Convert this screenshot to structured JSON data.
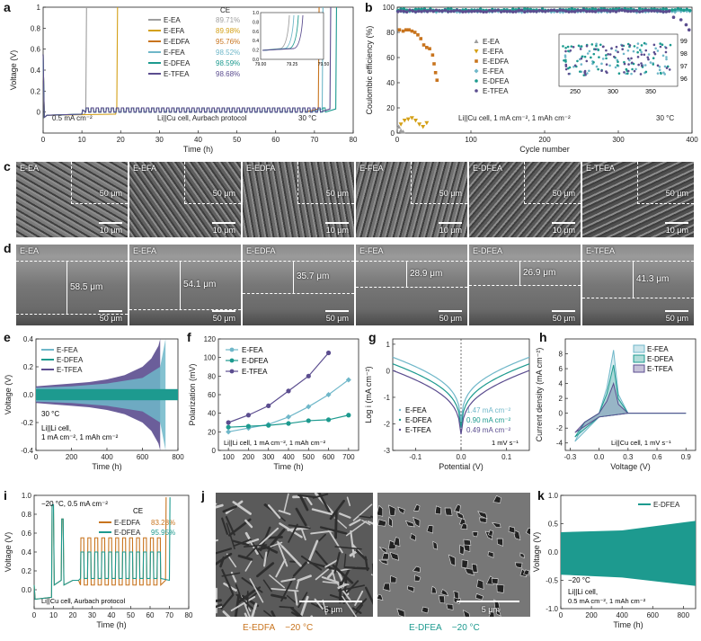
{
  "panels": {
    "a": {
      "letter": "a"
    },
    "b": {
      "letter": "b"
    },
    "c": {
      "letter": "c"
    },
    "d": {
      "letter": "d"
    },
    "e": {
      "letter": "e"
    },
    "f": {
      "letter": "f"
    },
    "g": {
      "letter": "g"
    },
    "h": {
      "letter": "h"
    },
    "i": {
      "letter": "i"
    },
    "j": {
      "letter": "j"
    },
    "k": {
      "letter": "k"
    }
  },
  "colors": {
    "E-EA": "#9e9e9e",
    "E-EFA": "#d4a017",
    "E-EDFA": "#c8741e",
    "E-FEA": "#6fb7c9",
    "E-DFEA": "#1d9a8f",
    "E-TFEA": "#5b4d8f"
  },
  "chart_data": [
    {
      "id": "a",
      "type": "line",
      "xlabel": "Time (h)",
      "ylabel": "Voltage (V)",
      "xlim": [
        0,
        80
      ],
      "ylim": [
        -0.2,
        1.0
      ],
      "xticks": [
        0,
        10,
        20,
        30,
        40,
        50,
        60,
        70,
        80
      ],
      "yticks": [
        0.0,
        0.2,
        0.4,
        0.6,
        0.8,
        1.0
      ],
      "legend_title": "CE",
      "series": [
        {
          "name": "E-EA",
          "ce": "89.71%",
          "end_time": 11
        },
        {
          "name": "E-EFA",
          "ce": "89.98%",
          "end_time": 19
        },
        {
          "name": "E-EDFA",
          "ce": "95.76%",
          "end_time": 71
        },
        {
          "name": "E-FEA",
          "ce": "98.52%",
          "end_time": 72
        },
        {
          "name": "E-DFEA",
          "ce": "98.59%",
          "end_time": 75.5
        },
        {
          "name": "E-TFEA",
          "ce": "98.68%",
          "end_time": 74
        }
      ],
      "annotations": [
        "0.5 mA cm⁻²",
        "Li||Cu cell, Aurbach protocol",
        "30 °C"
      ],
      "inset": {
        "xlim": [
          79.0,
          79.5
        ],
        "ylim": [
          0.0,
          1.0
        ],
        "xticks": [
          "79.00",
          "79.25",
          "79.50"
        ],
        "yticks": [
          "0.0",
          "0.2",
          "0.4",
          "0.6",
          "0.8",
          "1.0"
        ]
      }
    },
    {
      "id": "b",
      "type": "scatter",
      "xlabel": "Cycle number",
      "ylabel": "Coulombic efficiency (%)",
      "xlim": [
        0,
        400
      ],
      "ylim": [
        0,
        100
      ],
      "xticks": [
        0,
        100,
        200,
        300,
        400
      ],
      "yticks": [
        0,
        20,
        40,
        60,
        80,
        100
      ],
      "series": [
        {
          "name": "E-EA",
          "points": [
            [
              2,
              5
            ],
            [
              5,
              2
            ],
            [
              8,
              1
            ]
          ]
        },
        {
          "name": "E-EFA",
          "points": [
            [
              5,
              7
            ],
            [
              10,
              10
            ],
            [
              15,
              11
            ],
            [
              20,
              12
            ],
            [
              25,
              10
            ],
            [
              30,
              7
            ],
            [
              35,
              5
            ],
            [
              40,
              8
            ]
          ]
        },
        {
          "name": "E-EDFA",
          "points": [
            [
              3,
              82
            ],
            [
              8,
              81
            ],
            [
              12,
              82
            ],
            [
              16,
              82
            ],
            [
              20,
              81
            ],
            [
              24,
              80
            ],
            [
              28,
              78
            ],
            [
              32,
              75
            ],
            [
              36,
              70
            ],
            [
              40,
              68
            ],
            [
              44,
              67
            ],
            [
              48,
              62
            ],
            [
              50,
              55
            ],
            [
              52,
              48
            ],
            [
              54,
              42
            ]
          ]
        },
        {
          "name": "E-FEA",
          "range": [
            1,
            400
          ],
          "value": 97
        },
        {
          "name": "E-DFEA",
          "range": [
            1,
            400
          ],
          "value": 98
        },
        {
          "name": "E-TFEA",
          "range": [
            1,
            370
          ],
          "value": 97
        }
      ],
      "annotations": [
        "Li||Cu cell, 1 mA cm⁻², 1 mAh cm⁻²",
        "30 °C"
      ],
      "inset": {
        "xticks": [
          "250",
          "300",
          "350"
        ],
        "yticks": [
          "96",
          "97",
          "98",
          "99"
        ]
      }
    },
    {
      "id": "e",
      "type": "line",
      "xlabel": "Time (h)",
      "ylabel": "Voltage (V)",
      "xlim": [
        0,
        800
      ],
      "ylim": [
        -0.4,
        0.4
      ],
      "xticks": [
        0,
        200,
        400,
        600,
        800
      ],
      "yticks": [
        "-0.4",
        "-0.2",
        "0.0",
        "0.2",
        "0.4"
      ],
      "series": [
        {
          "name": "E-FEA"
        },
        {
          "name": "E-DFEA"
        },
        {
          "name": "E-TFEA"
        }
      ],
      "annotations": [
        "30 °C",
        "Li||Li cell,",
        "1 mA cm⁻², 1 mAh cm⁻²"
      ]
    },
    {
      "id": "f",
      "type": "line",
      "xlabel": "Time (h)",
      "ylabel": "Polarization (mV)",
      "xlim": [
        50,
        750
      ],
      "ylim": [
        0,
        120
      ],
      "xticks": [
        100,
        200,
        300,
        400,
        500,
        600,
        700
      ],
      "yticks": [
        0,
        20,
        40,
        60,
        80,
        100,
        120
      ],
      "series": [
        {
          "name": "E-FEA",
          "x": [
            100,
            200,
            300,
            400,
            500,
            600,
            700
          ],
          "y": [
            20,
            24,
            28,
            36,
            47,
            60,
            76
          ]
        },
        {
          "name": "E-DFEA",
          "x": [
            100,
            200,
            300,
            400,
            500,
            600,
            700
          ],
          "y": [
            25,
            26,
            27,
            29,
            32,
            33,
            38
          ]
        },
        {
          "name": "E-TFEA",
          "x": [
            100,
            200,
            300,
            400,
            500,
            600
          ],
          "y": [
            30,
            38,
            48,
            64,
            80,
            105
          ]
        }
      ],
      "annotations": [
        "Li||Li cell, 1 mA cm⁻², 1 mAh cm⁻²"
      ]
    },
    {
      "id": "g",
      "type": "line",
      "xlabel": "Potential (V)",
      "ylabel": "Log i (mA cm⁻²)",
      "xlim": [
        -0.15,
        0.15
      ],
      "ylim": [
        -3,
        1.2
      ],
      "xticks": [
        "-0.1",
        "0.0",
        "0.1"
      ],
      "yticks": [
        "-3",
        "-2",
        "-1",
        "0",
        "1"
      ],
      "series": [
        {
          "name": "E-FEA",
          "i0": "1.47 mA cm⁻²"
        },
        {
          "name": "E-DFEA",
          "i0": "0.90 mA cm⁻²"
        },
        {
          "name": "E-TFEA",
          "i0": "0.49 mA cm⁻²"
        }
      ],
      "annotations": [
        "1 mV s⁻¹"
      ]
    },
    {
      "id": "h",
      "type": "line",
      "xlabel": "Voltage (V)",
      "ylabel": "Current density (mA cm⁻²)",
      "xlim": [
        -0.35,
        1.0
      ],
      "ylim": [
        -5,
        10
      ],
      "xticks": [
        "-0.3",
        "0.0",
        "0.3",
        "0.6",
        "0.9"
      ],
      "yticks": [
        "-4",
        "-2",
        "0",
        "2",
        "4",
        "6",
        "8"
      ],
      "series": [
        {
          "name": "E-FEA"
        },
        {
          "name": "E-DFEA"
        },
        {
          "name": "E-TFEA"
        }
      ],
      "annotations": [
        "Li||Cu cell, 1 mV s⁻¹"
      ]
    },
    {
      "id": "i",
      "type": "line",
      "xlabel": "Time (h)",
      "ylabel": "Voltage (V)",
      "xlim": [
        0,
        80
      ],
      "ylim": [
        -0.2,
        1.0
      ],
      "xticks": [
        0,
        10,
        20,
        30,
        40,
        50,
        60,
        70,
        80
      ],
      "yticks": [
        "0.0",
        "0.2",
        "0.4",
        "0.6",
        "0.8",
        "1.0"
      ],
      "legend_title": "CE",
      "series": [
        {
          "name": "E-EDFA",
          "ce": "83.28%"
        },
        {
          "name": "E-DFEA",
          "ce": "95.95%"
        }
      ],
      "annotations": [
        "−20 °C, 0.5 mA cm⁻²",
        "Li||Cu cell, Aurbach protocol"
      ]
    },
    {
      "id": "k",
      "type": "line",
      "xlabel": "Time (h)",
      "ylabel": "Voltage (V)",
      "xlim": [
        0,
        880
      ],
      "ylim": [
        -1.0,
        1.0
      ],
      "xticks": [
        0,
        200,
        400,
        600,
        800
      ],
      "yticks": [
        "-1.0",
        "-0.5",
        "0.0",
        "0.5",
        "1.0"
      ],
      "series": [
        {
          "name": "E-DFEA"
        }
      ],
      "annotations": [
        "−20 °C",
        "Li||Li cell,",
        "0.5 mA cm⁻², 1 mAh cm⁻²"
      ]
    }
  ],
  "sem_c": {
    "items": [
      {
        "label": "E-EA",
        "scale_inset": "50 μm",
        "scale": "10 μm"
      },
      {
        "label": "E-EFA",
        "scale_inset": "50 μm",
        "scale": "10 μm"
      },
      {
        "label": "E-EDFA",
        "scale_inset": "50 μm",
        "scale": "10 μm"
      },
      {
        "label": "E-FEA",
        "scale_inset": "50 μm",
        "scale": "10 μm"
      },
      {
        "label": "E-DFEA",
        "scale_inset": "50 μm",
        "scale": "10 μm"
      },
      {
        "label": "E-TFEA",
        "scale_inset": "50 μm",
        "scale": "10 μm"
      }
    ]
  },
  "sem_d": {
    "items": [
      {
        "label": "E-EA",
        "thickness": "58.5 μm",
        "scale": "50 μm"
      },
      {
        "label": "E-EFA",
        "thickness": "54.1 μm",
        "scale": "50 μm"
      },
      {
        "label": "E-EDFA",
        "thickness": "35.7 μm",
        "scale": "50 μm"
      },
      {
        "label": "E-FEA",
        "thickness": "28.9 μm",
        "scale": "50 μm"
      },
      {
        "label": "E-DFEA",
        "thickness": "26.9 μm",
        "scale": "50 μm"
      },
      {
        "label": "E-TFEA",
        "thickness": "41.3 μm",
        "scale": "50 μm"
      }
    ]
  },
  "sem_j": {
    "left": {
      "scale": "5 μm",
      "caption": "E-EDFA",
      "temp": "−20 °C"
    },
    "right": {
      "scale": "5 μm",
      "caption": "E-DFEA",
      "temp": "−20 °C"
    }
  }
}
